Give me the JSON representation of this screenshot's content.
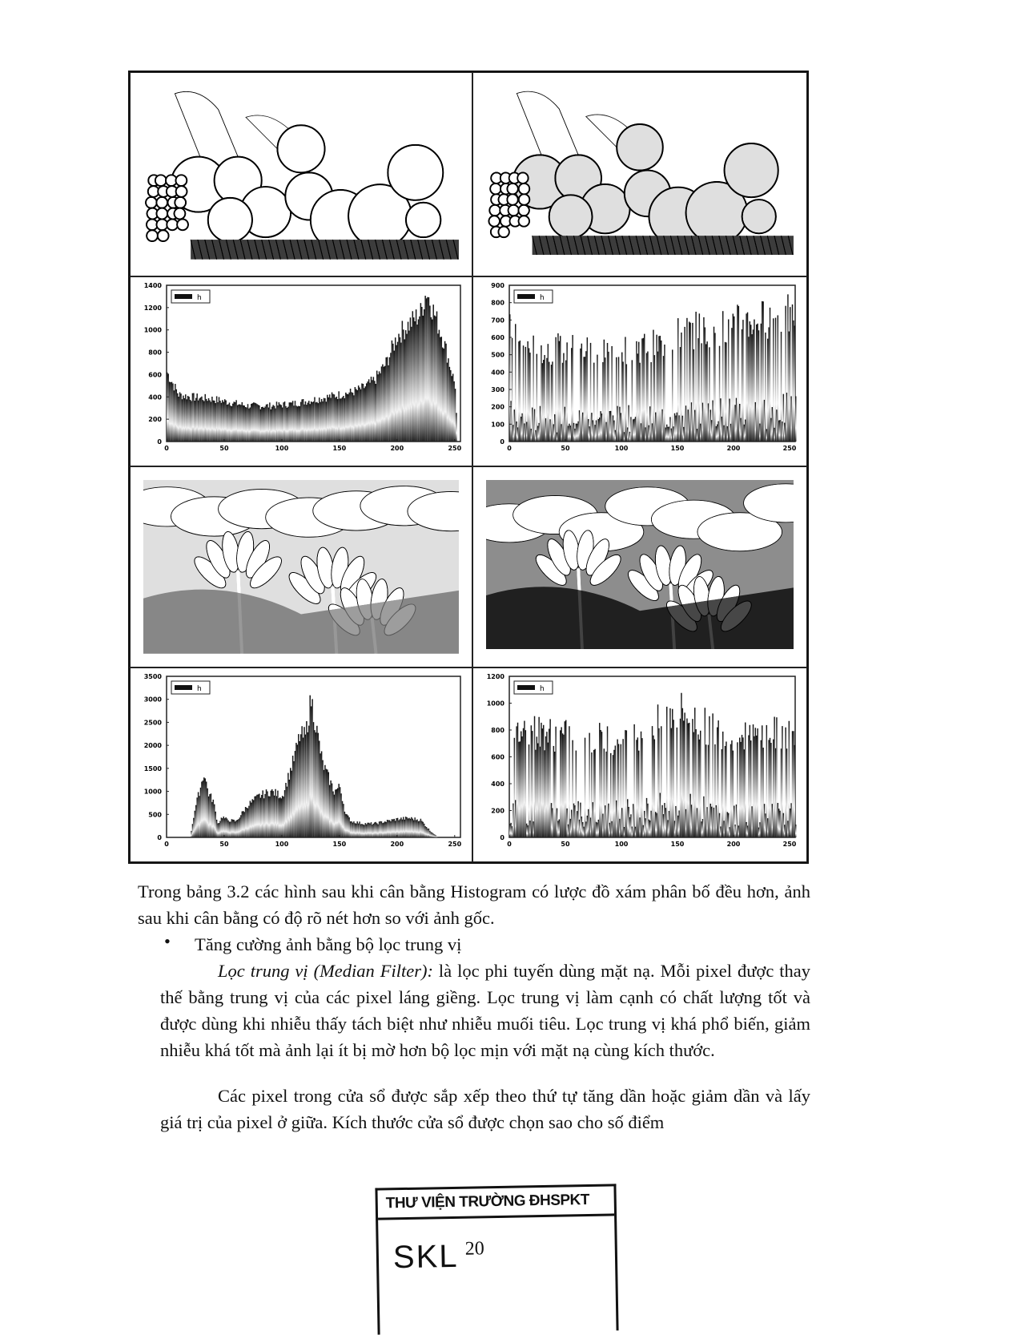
{
  "figure_table": {
    "rows": [
      {
        "left": "fruit-photo-original",
        "right": "fruit-photo-equalized"
      },
      {
        "left": "fruit-histogram-original",
        "right": "fruit-histogram-equalized"
      },
      {
        "left": "lotus-photo-original",
        "right": "lotus-photo-equalized"
      },
      {
        "left": "lotus-histogram-original",
        "right": "lotus-histogram-equalized"
      }
    ]
  },
  "chart_data": [
    {
      "type": "bar",
      "legend": "h",
      "legend_placement": "top-left",
      "xlim": [
        0,
        255
      ],
      "ylim": [
        0,
        1400
      ],
      "xticks": [
        "0",
        "50",
        "100",
        "150",
        "200",
        "250"
      ],
      "yticks": [
        "0",
        "200",
        "400",
        "600",
        "800",
        "1000",
        "1200",
        "1400"
      ],
      "x": [
        0,
        5,
        10,
        20,
        30,
        40,
        50,
        60,
        70,
        80,
        90,
        100,
        110,
        120,
        130,
        140,
        150,
        160,
        170,
        180,
        190,
        200,
        210,
        220,
        225,
        230,
        240,
        250,
        252,
        255
      ],
      "values": [
        620,
        520,
        420,
        400,
        390,
        380,
        360,
        340,
        320,
        320,
        320,
        330,
        340,
        360,
        380,
        400,
        420,
        440,
        480,
        550,
        700,
        950,
        1050,
        1150,
        1350,
        1200,
        900,
        500,
        0,
        0
      ]
    },
    {
      "type": "bar",
      "legend": "h",
      "legend_placement": "top-left",
      "xlim": [
        0,
        255
      ],
      "ylim": [
        0,
        900
      ],
      "xticks": [
        "0",
        "50",
        "100",
        "150",
        "200",
        "250"
      ],
      "yticks": [
        "0",
        "100",
        "200",
        "300",
        "400",
        "500",
        "600",
        "700",
        "800",
        "900"
      ],
      "x": [
        0,
        10,
        50,
        100,
        130,
        140,
        150,
        160,
        180,
        200,
        220,
        240,
        255
      ],
      "values": [
        620,
        520,
        520,
        520,
        540,
        560,
        600,
        620,
        640,
        660,
        680,
        700,
        720
      ]
    },
    {
      "type": "bar",
      "legend": "h",
      "legend_placement": "top-left",
      "xlim": [
        0,
        255
      ],
      "ylim": [
        0,
        3500
      ],
      "xticks": [
        "0",
        "50",
        "100",
        "150",
        "200",
        "250"
      ],
      "yticks": [
        "0",
        "500",
        "1000",
        "1500",
        "2000",
        "2500",
        "3000",
        "3500"
      ],
      "x": [
        0,
        20,
        24,
        28,
        32,
        36,
        40,
        44,
        48,
        52,
        60,
        70,
        80,
        90,
        100,
        110,
        115,
        120,
        125,
        130,
        135,
        140,
        145,
        150,
        155,
        160,
        170,
        180,
        190,
        200,
        210,
        220,
        228,
        235,
        255
      ],
      "values": [
        0,
        0,
        600,
        1000,
        1400,
        950,
        800,
        300,
        450,
        380,
        350,
        700,
        900,
        1000,
        900,
        1700,
        2200,
        2200,
        3000,
        2300,
        1600,
        1300,
        1000,
        1100,
        500,
        350,
        300,
        300,
        350,
        400,
        420,
        380,
        150,
        0,
        0
      ]
    },
    {
      "type": "bar",
      "legend": "h",
      "legend_placement": "top-left",
      "xlim": [
        0,
        255
      ],
      "ylim": [
        0,
        1200
      ],
      "xticks": [
        "0",
        "50",
        "100",
        "150",
        "200",
        "250"
      ],
      "yticks": [
        "0",
        "200",
        "400",
        "600",
        "800",
        "1000",
        "1200"
      ],
      "x": [
        0,
        10,
        30,
        60,
        90,
        110,
        130,
        140,
        150,
        160,
        170,
        190,
        210,
        240,
        255
      ],
      "values": [
        680,
        780,
        760,
        720,
        720,
        740,
        820,
        860,
        920,
        900,
        820,
        760,
        720,
        760,
        780
      ]
    }
  ],
  "paragraphs": {
    "p1": "Trong bảng 3.2 các hình sau khi cân bằng Histogram có lược đồ xám phân bố đều hơn, ảnh sau khi cân bằng có độ rõ nét hơn so với ảnh gốc.",
    "bullet_symbol": "•",
    "bullet": "Tăng cường ảnh bằng bộ lọc trung vị",
    "p2_term": "Lọc trung vị (Median Filter):",
    "p2": " là lọc phi tuyến dùng mặt nạ. Mỗi pixel được thay thế bằng trung vị của các pixel láng giềng. Lọc trung vị làm cạnh có chất lượng tốt và được dùng khi nhiễu thấy tách biệt như nhiễu muối tiêu. Lọc trung vị khá phổ biến, giảm nhiễu khá tốt mà ảnh lại ít bị mờ hơn bộ lọc mịn với mặt nạ cùng kích thước.",
    "p3": "Các pixel trong cửa sổ được sắp xếp theo thứ tự tăng dần hoặc giảm dần và lấy giá trị của pixel ở giữa. Kích thước cửa sổ được chọn sao cho số điểm"
  },
  "stamp": {
    "title": "THƯ VIỆN TRƯỜNG ĐHSPKT",
    "code": "SKL"
  },
  "page_number": "20"
}
